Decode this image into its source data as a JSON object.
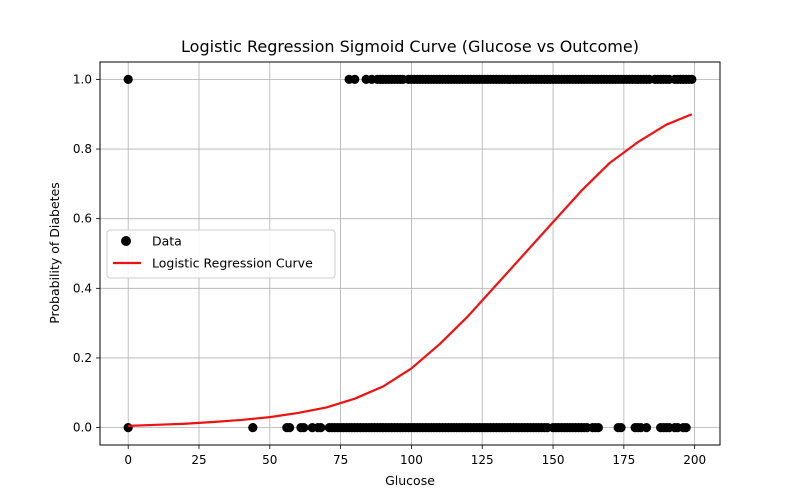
{
  "chart_data": {
    "type": "scatter",
    "title": "Logistic Regression Sigmoid Curve (Glucose vs Outcome)",
    "xlabel": "Glucose",
    "ylabel": "Probability of Diabetes",
    "xlim": [
      -9.95,
      208.95
    ],
    "ylim": [
      -0.05,
      1.05
    ],
    "xticks": [
      0,
      25,
      50,
      75,
      100,
      125,
      150,
      175,
      200
    ],
    "yticks": [
      0.0,
      0.2,
      0.4,
      0.6,
      0.8,
      1.0
    ],
    "xtick_labels": [
      "0",
      "25",
      "50",
      "75",
      "100",
      "125",
      "150",
      "175",
      "200"
    ],
    "ytick_labels": [
      "0.0",
      "0.2",
      "0.4",
      "0.6",
      "0.8",
      "1.0"
    ],
    "grid": true,
    "legend": {
      "placement": "center-left"
    },
    "series": [
      {
        "name": "Data",
        "kind": "scatter",
        "color": "#000000",
        "points_outcome_1_glucose": [
          0,
          78,
          80,
          84,
          86,
          88,
          89,
          90,
          91,
          92,
          93,
          94,
          95,
          96,
          97,
          99,
          100,
          101,
          102,
          103,
          104,
          105,
          106,
          107,
          108,
          109,
          110,
          111,
          112,
          113,
          114,
          115,
          116,
          117,
          118,
          119,
          120,
          121,
          122,
          123,
          124,
          125,
          126,
          127,
          128,
          129,
          130,
          131,
          132,
          133,
          134,
          135,
          136,
          137,
          138,
          139,
          140,
          141,
          142,
          143,
          144,
          145,
          146,
          147,
          148,
          149,
          150,
          151,
          152,
          153,
          154,
          155,
          156,
          157,
          158,
          159,
          160,
          161,
          162,
          163,
          164,
          165,
          166,
          167,
          168,
          169,
          170,
          171,
          172,
          173,
          174,
          175,
          176,
          177,
          178,
          179,
          180,
          181,
          182,
          183,
          184,
          186,
          187,
          188,
          189,
          190,
          191,
          193,
          194,
          195,
          196,
          197,
          198,
          199
        ],
        "points_outcome_0_glucose": [
          0,
          44,
          56,
          57,
          61,
          62,
          65,
          67,
          68,
          71,
          72,
          73,
          74,
          75,
          76,
          77,
          78,
          79,
          80,
          81,
          82,
          83,
          84,
          85,
          86,
          87,
          88,
          89,
          90,
          91,
          92,
          93,
          94,
          95,
          96,
          97,
          98,
          99,
          100,
          101,
          102,
          103,
          104,
          105,
          106,
          107,
          108,
          109,
          110,
          111,
          112,
          113,
          114,
          115,
          116,
          117,
          118,
          119,
          120,
          121,
          122,
          123,
          124,
          125,
          126,
          127,
          128,
          129,
          130,
          131,
          132,
          133,
          134,
          135,
          136,
          137,
          138,
          139,
          140,
          141,
          142,
          143,
          144,
          145,
          146,
          147,
          148,
          150,
          151,
          152,
          153,
          154,
          155,
          156,
          157,
          158,
          159,
          160,
          161,
          162,
          164,
          165,
          166,
          173,
          174,
          179,
          180,
          181,
          183,
          188,
          189,
          190,
          191,
          193,
          194,
          196,
          197
        ]
      },
      {
        "name": "Logistic Regression Curve",
        "kind": "line",
        "color": "#ee1111",
        "x": [
          0,
          10,
          20,
          30,
          40,
          50,
          60,
          70,
          80,
          90,
          100,
          110,
          120,
          130,
          140,
          150,
          160,
          170,
          180,
          190,
          199
        ],
        "y": [
          0.005,
          0.008,
          0.011,
          0.016,
          0.022,
          0.03,
          0.042,
          0.058,
          0.083,
          0.118,
          0.17,
          0.24,
          0.32,
          0.41,
          0.5,
          0.59,
          0.68,
          0.76,
          0.82,
          0.87,
          0.9
        ]
      }
    ]
  }
}
